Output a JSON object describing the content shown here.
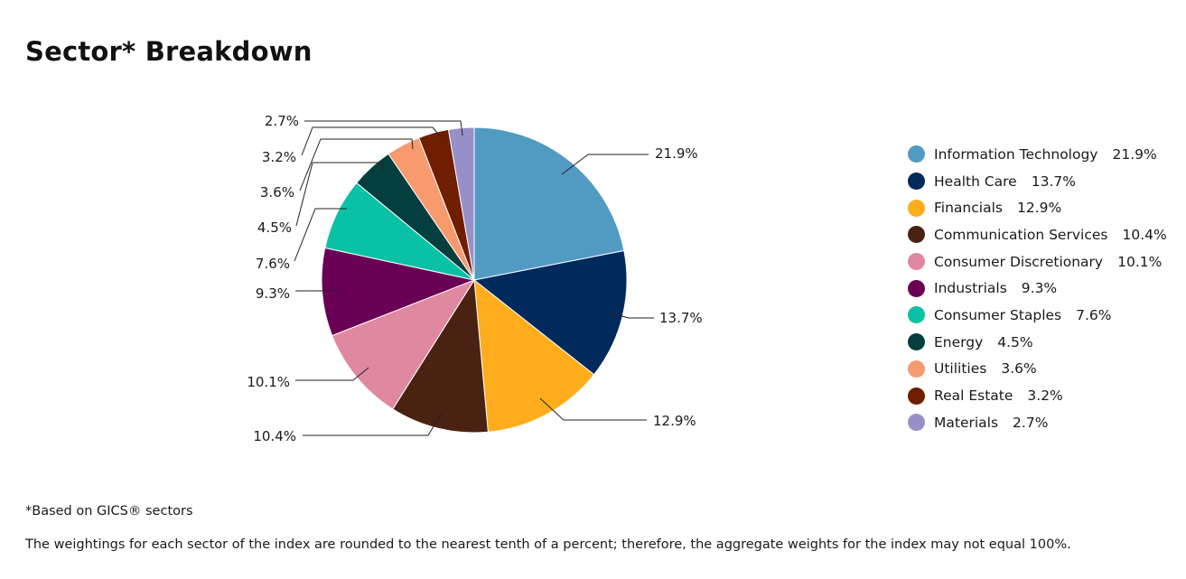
{
  "header": {
    "title": "Sector* Breakdown"
  },
  "footer": {
    "footnote": "*Based on GICS® sectors",
    "disclaimer": "The weightings for each sector of the index are rounded to the nearest tenth of a percent; therefore, the aggregate weights for the index may not equal 100%."
  },
  "chart_data": {
    "type": "pie",
    "title": "Sector* Breakdown",
    "legend_position": "right",
    "start": "12 o'clock, clockwise",
    "unit": "%",
    "slices": [
      {
        "label": "Information Technology",
        "value": 21.9,
        "display": "21.9%",
        "color": "#519bc3"
      },
      {
        "label": "Health Care",
        "value": 13.7,
        "display": "13.7%",
        "color": "#002a5c"
      },
      {
        "label": "Financials",
        "value": 12.9,
        "display": "12.9%",
        "color": "#ffad1c"
      },
      {
        "label": "Communication Services",
        "value": 10.4,
        "display": "10.4%",
        "color": "#4a2212"
      },
      {
        "label": "Consumer Discretionary",
        "value": 10.1,
        "display": "10.1%",
        "color": "#e088a0"
      },
      {
        "label": "Industrials",
        "value": 9.3,
        "display": "9.3%",
        "color": "#6a0055"
      },
      {
        "label": "Consumer Staples",
        "value": 7.6,
        "display": "7.6%",
        "color": "#09c2a5"
      },
      {
        "label": "Energy",
        "value": 4.5,
        "display": "4.5%",
        "color": "#053e3e"
      },
      {
        "label": "Utilities",
        "value": 3.6,
        "display": "3.6%",
        "color": "#f79a6e"
      },
      {
        "label": "Real Estate",
        "value": 3.2,
        "display": "3.2%",
        "color": "#6f1e02"
      },
      {
        "label": "Materials",
        "value": 2.7,
        "display": "2.7%",
        "color": "#9890c8"
      }
    ]
  }
}
